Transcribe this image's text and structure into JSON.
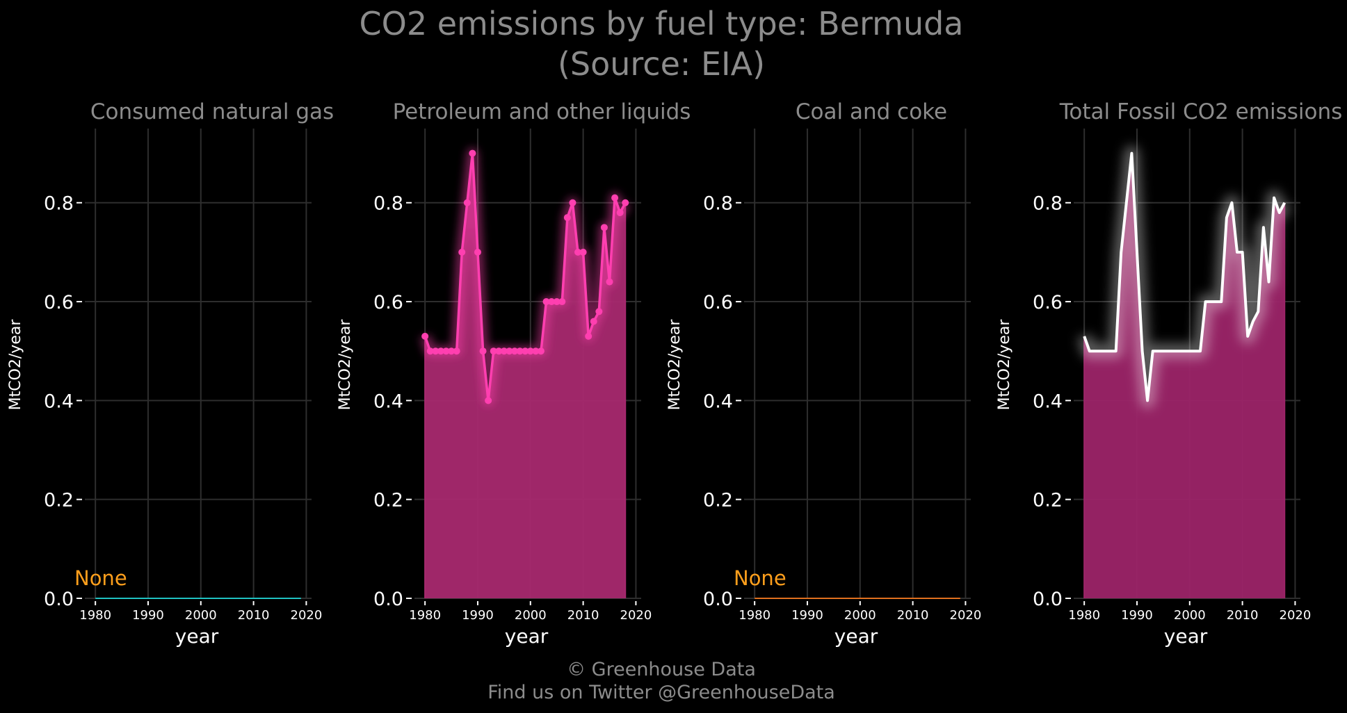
{
  "title": {
    "line1": "CO2 emissions by fuel type: Bermuda",
    "line2": "(Source: EIA)"
  },
  "footer": {
    "line1": "© Greenhouse Data",
    "line2": "Find us on Twitter @GreenhouseData"
  },
  "colors": {
    "background": "#000000",
    "title": "#8c8c8c",
    "grid": "#2e2e2e",
    "axis_text": "#ffffff",
    "natural_gas": "#1fc2c2",
    "petroleum_line": "#ff3fb0",
    "petroleum_fill": "#a8296f",
    "coal": "#e0701e",
    "total_line": "#ffffff",
    "total_fill": "#9c2468",
    "none_label": "#ff9f1c"
  },
  "chart_data": [
    {
      "type": "area",
      "panel": "natural-gas",
      "title": "Consumed natural gas",
      "xlabel": "year",
      "ylabel": "MtCO2/year",
      "xlim": [
        1978,
        2021
      ],
      "ylim": [
        0,
        0.95
      ],
      "xticks": [
        1980,
        1990,
        2000,
        2010,
        2020
      ],
      "yticks": [
        0.0,
        0.2,
        0.4,
        0.6,
        0.8
      ],
      "x": [
        1980,
        2019
      ],
      "y": [
        0,
        0
      ],
      "annotation": "None",
      "markers": false,
      "fill": false,
      "grid": true
    },
    {
      "type": "area",
      "panel": "petroleum",
      "title": "Petroleum and other liquids",
      "xlabel": "year",
      "ylabel": "MtCO2/year",
      "xlim": [
        1978,
        2021
      ],
      "ylim": [
        0,
        0.95
      ],
      "xticks": [
        1980,
        1990,
        2000,
        2010,
        2020
      ],
      "yticks": [
        0.0,
        0.2,
        0.4,
        0.6,
        0.8
      ],
      "x": [
        1980,
        1981,
        1982,
        1983,
        1984,
        1985,
        1986,
        1987,
        1988,
        1989,
        1990,
        1991,
        1992,
        1993,
        1994,
        1995,
        1996,
        1997,
        1998,
        1999,
        2000,
        2001,
        2002,
        2003,
        2004,
        2005,
        2006,
        2007,
        2008,
        2009,
        2010,
        2011,
        2012,
        2013,
        2014,
        2015,
        2016,
        2017,
        2018
      ],
      "y": [
        0.53,
        0.5,
        0.5,
        0.5,
        0.5,
        0.5,
        0.5,
        0.7,
        0.8,
        0.9,
        0.7,
        0.5,
        0.4,
        0.5,
        0.5,
        0.5,
        0.5,
        0.5,
        0.5,
        0.5,
        0.5,
        0.5,
        0.5,
        0.6,
        0.6,
        0.6,
        0.6,
        0.77,
        0.8,
        0.7,
        0.7,
        0.53,
        0.56,
        0.58,
        0.75,
        0.64,
        0.81,
        0.78,
        0.8
      ],
      "markers": true,
      "fill": true,
      "grid": true
    },
    {
      "type": "area",
      "panel": "coal",
      "title": "Coal and coke",
      "xlabel": "year",
      "ylabel": "MtCO2/year",
      "xlim": [
        1978,
        2021
      ],
      "ylim": [
        0,
        0.95
      ],
      "xticks": [
        1980,
        1990,
        2000,
        2010,
        2020
      ],
      "yticks": [
        0.0,
        0.2,
        0.4,
        0.6,
        0.8
      ],
      "x": [
        1980,
        2019
      ],
      "y": [
        0,
        0
      ],
      "annotation": "None",
      "markers": false,
      "fill": false,
      "grid": true
    },
    {
      "type": "area",
      "panel": "total",
      "title": "Total Fossil CO2 emissions",
      "xlabel": "year",
      "ylabel": "MtCO2/year",
      "xlim": [
        1978,
        2021
      ],
      "ylim": [
        0,
        0.95
      ],
      "xticks": [
        1980,
        1990,
        2000,
        2010,
        2020
      ],
      "yticks": [
        0.0,
        0.2,
        0.4,
        0.6,
        0.8
      ],
      "x": [
        1980,
        1981,
        1982,
        1983,
        1984,
        1985,
        1986,
        1987,
        1988,
        1989,
        1990,
        1991,
        1992,
        1993,
        1994,
        1995,
        1996,
        1997,
        1998,
        1999,
        2000,
        2001,
        2002,
        2003,
        2004,
        2005,
        2006,
        2007,
        2008,
        2009,
        2010,
        2011,
        2012,
        2013,
        2014,
        2015,
        2016,
        2017,
        2018
      ],
      "y": [
        0.53,
        0.5,
        0.5,
        0.5,
        0.5,
        0.5,
        0.5,
        0.7,
        0.8,
        0.9,
        0.7,
        0.5,
        0.4,
        0.5,
        0.5,
        0.5,
        0.5,
        0.5,
        0.5,
        0.5,
        0.5,
        0.5,
        0.5,
        0.6,
        0.6,
        0.6,
        0.6,
        0.77,
        0.8,
        0.7,
        0.7,
        0.53,
        0.56,
        0.58,
        0.75,
        0.64,
        0.81,
        0.78,
        0.8
      ],
      "markers": false,
      "fill": true,
      "grid": true
    }
  ]
}
